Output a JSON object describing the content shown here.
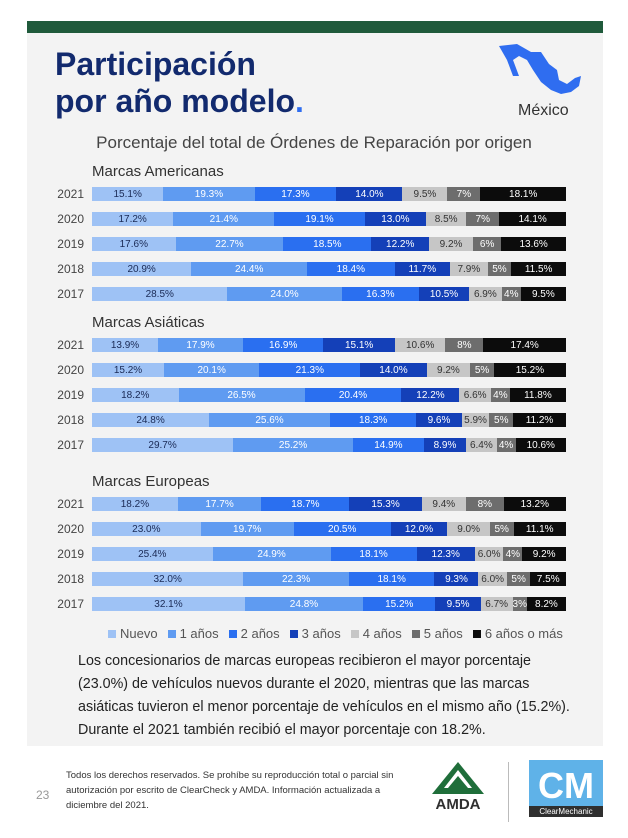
{
  "header": {
    "title_line1": "Participación",
    "title_line2": "por año modelo",
    "title_dot": ".",
    "country": "México",
    "subtitle": "Porcentaje del total de Órdenes de Reparación por origen"
  },
  "colors": {
    "topbar": "#1f5a3b",
    "title": "#122a6e",
    "segments": [
      "#9ec2f5",
      "#5f9bf1",
      "#2a6ff0",
      "#1440b8",
      "#c6c6c6",
      "#6d6d6d",
      "#0c0c0c"
    ],
    "segment_text": [
      "#1a2a55",
      "#ffffff",
      "#ffffff",
      "#ffffff",
      "#333333",
      "#ffffff",
      "#ffffff"
    ]
  },
  "chart_data": {
    "type": "bar",
    "orientation": "horizontal",
    "stacked": true,
    "legend_position": "bottom",
    "series_names": [
      "Nuevo",
      "1 años",
      "2 años",
      "3 años",
      "4 años",
      "5 años",
      "6 años o más"
    ],
    "groups": [
      {
        "name": "Marcas Americanas",
        "rows": [
          {
            "year": "2021",
            "values": [
              15.1,
              19.3,
              17.3,
              14.0,
              9.5,
              7,
              18.1
            ],
            "labels": [
              "15.1%",
              "19.3%",
              "17.3%",
              "14.0%",
              "9.5%",
              "7%",
              "18.1%"
            ]
          },
          {
            "year": "2020",
            "values": [
              17.2,
              21.4,
              19.1,
              13.0,
              8.5,
              7,
              14.1
            ],
            "labels": [
              "17.2%",
              "21.4%",
              "19.1%",
              "13.0%",
              "8.5%",
              "7%",
              "14.1%"
            ]
          },
          {
            "year": "2019",
            "values": [
              17.6,
              22.7,
              18.5,
              12.2,
              9.2,
              6,
              13.6
            ],
            "labels": [
              "17.6%",
              "22.7%",
              "18.5%",
              "12.2%",
              "9.2%",
              "6%",
              "13.6%"
            ]
          },
          {
            "year": "2018",
            "values": [
              20.9,
              24.4,
              18.4,
              11.7,
              7.9,
              5,
              11.5
            ],
            "labels": [
              "20.9%",
              "24.4%",
              "18.4%",
              "11.7%",
              "7.9%",
              "5%",
              "11.5%"
            ]
          },
          {
            "year": "2017",
            "values": [
              28.5,
              24.0,
              16.3,
              10.5,
              6.9,
              4,
              9.5
            ],
            "labels": [
              "28.5%",
              "24.0%",
              "16.3%",
              "10.5%",
              "6.9%",
              "4%",
              "9.5%"
            ]
          }
        ]
      },
      {
        "name": "Marcas Asiáticas",
        "rows": [
          {
            "year": "2021",
            "values": [
              13.9,
              17.9,
              16.9,
              15.1,
              10.6,
              8,
              17.4
            ],
            "labels": [
              "13.9%",
              "17.9%",
              "16.9%",
              "15.1%",
              "10.6%",
              "8%",
              "17.4%"
            ]
          },
          {
            "year": "2020",
            "values": [
              15.2,
              20.1,
              21.3,
              14.0,
              9.2,
              5,
              15.2
            ],
            "labels": [
              "15.2%",
              "20.1%",
              "21.3%",
              "14.0%",
              "9.2%",
              "5%",
              "15.2%"
            ]
          },
          {
            "year": "2019",
            "values": [
              18.2,
              26.5,
              20.4,
              12.2,
              6.6,
              4,
              11.8
            ],
            "labels": [
              "18.2%",
              "26.5%",
              "20.4%",
              "12.2%",
              "6.6%",
              "4%",
              "11.8%"
            ]
          },
          {
            "year": "2018",
            "values": [
              24.8,
              25.6,
              18.3,
              9.6,
              5.9,
              5,
              11.2
            ],
            "labels": [
              "24.8%",
              "25.6%",
              "18.3%",
              "9.6%",
              "5.9%",
              "5%",
              "11.2%"
            ]
          },
          {
            "year": "2017",
            "values": [
              29.7,
              25.2,
              14.9,
              8.9,
              6.4,
              4,
              10.6
            ],
            "labels": [
              "29.7%",
              "25.2%",
              "14.9%",
              "8.9%",
              "6.4%",
              "4%",
              "10.6%"
            ]
          }
        ]
      },
      {
        "name": "Marcas Europeas",
        "rows": [
          {
            "year": "2021",
            "values": [
              18.2,
              17.7,
              18.7,
              15.3,
              9.4,
              8,
              13.2
            ],
            "labels": [
              "18.2%",
              "17.7%",
              "18.7%",
              "15.3%",
              "9.4%",
              "8%",
              "13.2%"
            ]
          },
          {
            "year": "2020",
            "values": [
              23.0,
              19.7,
              20.5,
              12.0,
              9.0,
              5,
              11.1
            ],
            "labels": [
              "23.0%",
              "19.7%",
              "20.5%",
              "12.0%",
              "9.0%",
              "5%",
              "11.1%"
            ]
          },
          {
            "year": "2019",
            "values": [
              25.4,
              24.9,
              18.1,
              12.3,
              6.0,
              4,
              9.2
            ],
            "labels": [
              "25.4%",
              "24.9%",
              "18.1%",
              "12.3%",
              "6.0%",
              "4%",
              "9.2%"
            ]
          },
          {
            "year": "2018",
            "values": [
              32.0,
              22.3,
              18.1,
              9.3,
              6.0,
              5,
              7.5
            ],
            "labels": [
              "32.0%",
              "22.3%",
              "18.1%",
              "9.3%",
              "6.0%",
              "5%",
              "7.5%"
            ]
          },
          {
            "year": "2017",
            "values": [
              32.1,
              24.8,
              15.2,
              9.5,
              6.7,
              3,
              8.2
            ],
            "labels": [
              "32.1%",
              "24.8%",
              "15.2%",
              "9.5%",
              "6.7%",
              "3%",
              "8.2%"
            ]
          }
        ]
      }
    ]
  },
  "body": {
    "paragraph": "Los concesionarios de marcas europeas recibieron el mayor porcentaje (23.0%) de vehículos nuevos durante el 2020, mientras que las marcas asiáticas tuvieron el menor porcentaje de vehículos en el mismo año (15.2%). Durante el 2021 también recibió el mayor porcentaje con 18.2%."
  },
  "footer": {
    "page_number": "23",
    "rights_text": "Todos los derechos reservados. Se prohíbe su reproducción total o parcial sin autorización por escrito de ClearCheck y AMDA. Información actualizada a diciembre del 2021.",
    "logo_amda": "AMDA",
    "logo_cm": "CM",
    "logo_cm_caption": "ClearMechanic"
  }
}
